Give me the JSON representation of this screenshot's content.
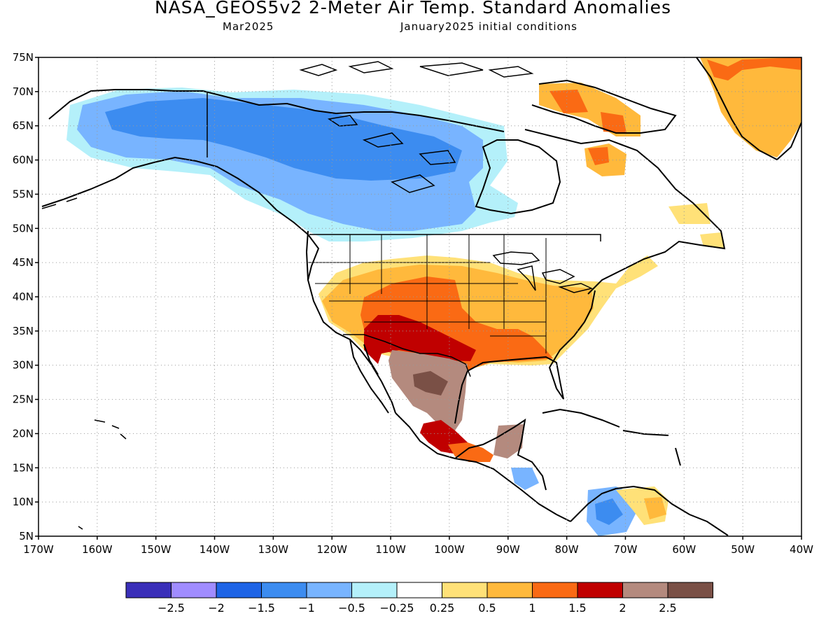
{
  "header": {
    "title": "NASA_GEOS5v2 2-Meter Air Temp. Standard Anomalies",
    "valid": "Mar2025",
    "init": "January2025 initial conditions"
  },
  "map": {
    "lat_labels": [
      "75N",
      "70N",
      "65N",
      "60N",
      "55N",
      "50N",
      "45N",
      "40N",
      "35N",
      "30N",
      "25N",
      "20N",
      "15N",
      "10N",
      "5N"
    ],
    "lon_labels": [
      "170W",
      "160W",
      "150W",
      "140W",
      "130W",
      "120W",
      "110W",
      "100W",
      "90W",
      "80W",
      "70W",
      "60W",
      "50W",
      "40W"
    ],
    "lat_range": [
      5,
      75
    ],
    "lon_range": [
      -170,
      -40
    ],
    "grid": "dotted"
  },
  "colorbar": {
    "colors": [
      "#3a2fb9",
      "#a08cff",
      "#1e64e6",
      "#3c8cf0",
      "#78b4ff",
      "#b4f0fa",
      "#ffffff",
      "#ffe178",
      "#ffb93c",
      "#fa6a14",
      "#c00000",
      "#b48a7e",
      "#7a5046"
    ],
    "labels": [
      "-2.5",
      "-2",
      "-1.5",
      "-1",
      "-0.5",
      "-0.25",
      "0.25",
      "0.5",
      "1",
      "1.5",
      "2",
      "2.5"
    ]
  },
  "anomaly_regions": [
    {
      "name": "alaska-yukon-cold-anomaly",
      "level": "-1 to -1.5"
    },
    {
      "name": "canada-prairies-cold-anomaly",
      "level": "-0.5 to -1.5"
    },
    {
      "name": "southwest-us-warm-anomaly",
      "level": "1.5 to 2.5"
    },
    {
      "name": "northern-mexico-warm-anomaly",
      "level": "2 to 2.5+"
    },
    {
      "name": "greenland-warm-anomaly",
      "level": "1 to 1.5"
    },
    {
      "name": "eastern-us-warm-anomaly",
      "level": "0.5 to 1.5"
    }
  ]
}
